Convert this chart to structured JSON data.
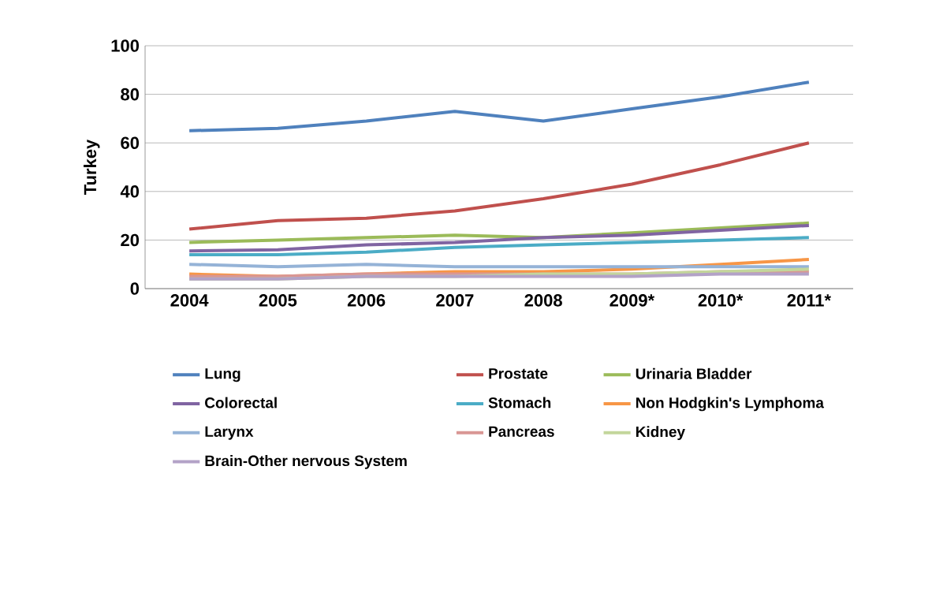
{
  "chart_data": {
    "type": "line",
    "ylabel": "Turkey",
    "categories": [
      "2004",
      "2005",
      "2006",
      "2007",
      "2008",
      "2009*",
      "2010*",
      "2011*"
    ],
    "ylim": [
      0,
      100
    ],
    "yticks": [
      0,
      20,
      40,
      60,
      80,
      100
    ],
    "grid": "y",
    "legend": "bottom",
    "marker": "none",
    "line_style": "solid",
    "series": [
      {
        "name": "Lung",
        "color": "#4f81bd",
        "values": [
          65,
          66,
          69,
          73,
          69,
          74,
          79,
          85
        ]
      },
      {
        "name": "Prostate",
        "color": "#c0504d",
        "values": [
          24.5,
          28,
          29,
          32,
          37,
          43,
          51,
          60
        ]
      },
      {
        "name": "Urinaria Bladder",
        "color": "#9bbb59",
        "values": [
          19,
          20,
          21,
          22,
          21,
          23,
          25,
          27
        ]
      },
      {
        "name": "Colorectal",
        "color": "#8064a2",
        "values": [
          15.5,
          16,
          18,
          19,
          21,
          22,
          24,
          26
        ]
      },
      {
        "name": "Stomach",
        "color": "#4bacc6",
        "values": [
          14,
          14,
          15,
          17,
          18,
          19,
          20,
          21
        ]
      },
      {
        "name": "Non Hodgkin's Lymphoma",
        "color": "#f79646",
        "values": [
          6,
          5,
          6,
          7,
          7,
          8,
          10,
          12
        ]
      },
      {
        "name": "Larynx",
        "color": "#95b3d7",
        "values": [
          10,
          9,
          10,
          9,
          9,
          9,
          9,
          9
        ]
      },
      {
        "name": "Pancreas",
        "color": "#d99694",
        "values": [
          5,
          5,
          6,
          6,
          6,
          6,
          7,
          7
        ]
      },
      {
        "name": "Kidney",
        "color": "#c3d69b",
        "values": [
          4,
          4,
          5,
          5,
          6,
          6,
          7,
          8
        ]
      },
      {
        "name": "Brain-Other nervous System",
        "color": "#b3a2c7",
        "values": [
          4,
          4,
          5,
          5,
          5,
          5,
          6,
          6
        ]
      }
    ]
  }
}
